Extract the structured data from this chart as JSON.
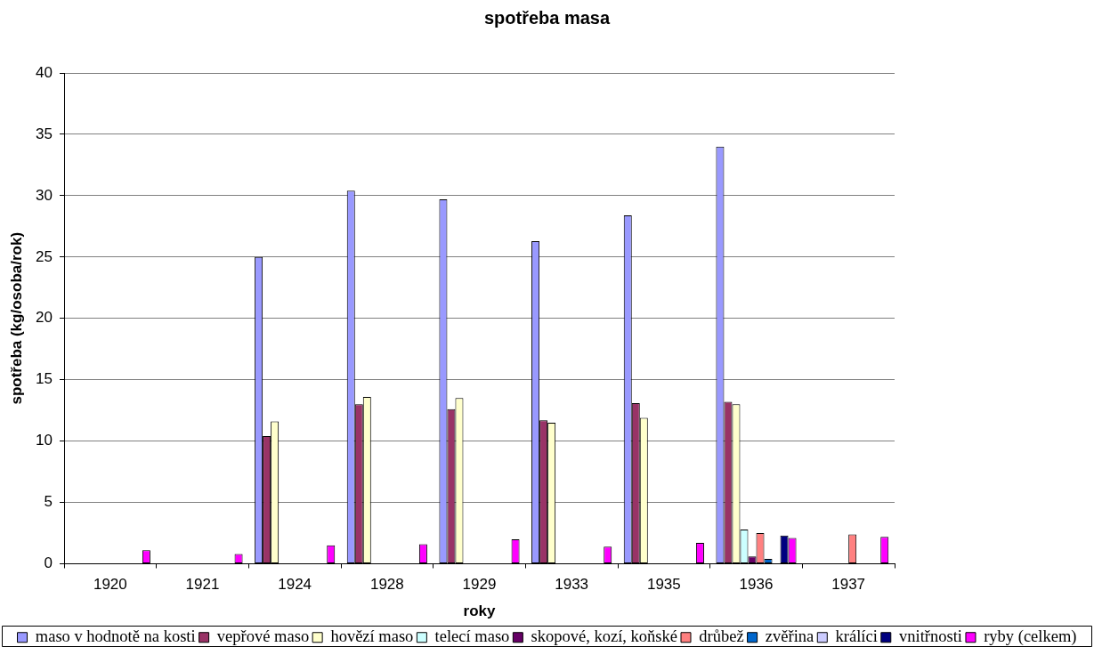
{
  "chart_data": {
    "type": "bar",
    "title": "spotřeba masa",
    "xlabel": "roky",
    "ylabel": "spotřeba (kg/osoba/rok)",
    "categories": [
      "1920",
      "1921",
      "1924",
      "1928",
      "1929",
      "1933",
      "1935",
      "1936",
      "1937"
    ],
    "series": [
      {
        "name": "maso v hodnotě na kosti",
        "color": "#9999ff",
        "values": [
          null,
          null,
          25.0,
          30.4,
          29.7,
          26.3,
          28.4,
          34.0,
          null
        ]
      },
      {
        "name": "vepřové maso",
        "color": "#993366",
        "values": [
          null,
          null,
          10.4,
          13.0,
          12.6,
          11.7,
          13.1,
          13.2,
          null
        ]
      },
      {
        "name": "hovězí maso",
        "color": "#ffffcc",
        "values": [
          null,
          null,
          11.6,
          13.6,
          13.5,
          11.5,
          11.9,
          13.0,
          null
        ]
      },
      {
        "name": "telecí maso",
        "color": "#ccffff",
        "values": [
          null,
          null,
          null,
          null,
          null,
          null,
          null,
          2.8,
          null
        ]
      },
      {
        "name": "skopové, kozí, koňské",
        "color": "#660066",
        "values": [
          null,
          null,
          null,
          null,
          null,
          null,
          null,
          0.6,
          null
        ]
      },
      {
        "name": "drůbež",
        "color": "#ff8080",
        "values": [
          null,
          null,
          null,
          null,
          null,
          null,
          null,
          2.5,
          2.4
        ]
      },
      {
        "name": "zvěřina",
        "color": "#0066cc",
        "values": [
          null,
          null,
          null,
          null,
          null,
          null,
          null,
          0.4,
          null
        ]
      },
      {
        "name": "králíci",
        "color": "#ccccff",
        "values": [
          null,
          null,
          null,
          null,
          null,
          null,
          null,
          null,
          null
        ]
      },
      {
        "name": "vnitřnosti",
        "color": "#000080",
        "values": [
          null,
          null,
          null,
          null,
          null,
          null,
          null,
          2.3,
          null
        ]
      },
      {
        "name": "ryby (celkem)",
        "color": "#ff00ff",
        "values": [
          1.1,
          0.8,
          1.5,
          1.6,
          2.0,
          1.4,
          1.7,
          2.1,
          2.2
        ]
      }
    ],
    "ylim": [
      0,
      40
    ],
    "yticks": [
      0,
      5,
      10,
      15,
      20,
      25,
      30,
      35,
      40
    ],
    "grid": "y",
    "legend": "bottom"
  }
}
